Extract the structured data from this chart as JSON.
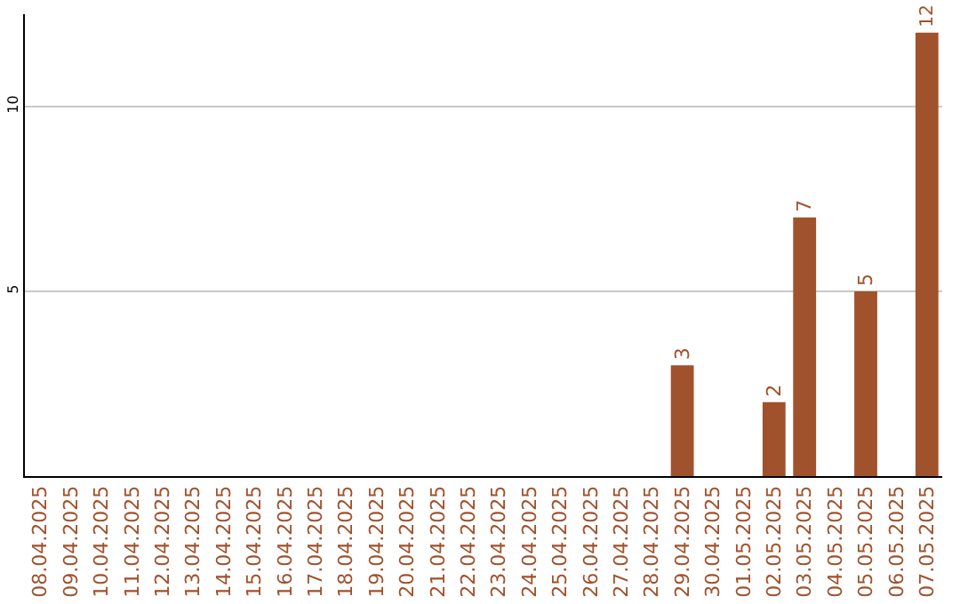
{
  "chart_data": {
    "type": "bar",
    "categories": [
      "08.04.2025",
      "09.04.2025",
      "10.04.2025",
      "11.04.2025",
      "12.04.2025",
      "13.04.2025",
      "14.04.2025",
      "15.04.2025",
      "16.04.2025",
      "17.04.2025",
      "18.04.2025",
      "19.04.2025",
      "20.04.2025",
      "21.04.2025",
      "22.04.2025",
      "23.04.2025",
      "24.04.2025",
      "25.04.2025",
      "26.04.2025",
      "27.04.2025",
      "28.04.2025",
      "29.04.2025",
      "30.04.2025",
      "01.05.2025",
      "02.05.2025",
      "03.05.2025",
      "04.05.2025",
      "05.05.2025",
      "06.05.2025",
      "07.05.2025"
    ],
    "values": [
      0,
      0,
      0,
      0,
      0,
      0,
      0,
      0,
      0,
      0,
      0,
      0,
      0,
      0,
      0,
      0,
      0,
      0,
      0,
      0,
      0,
      3,
      0,
      0,
      2,
      7,
      0,
      5,
      0,
      12
    ],
    "value_labels": [
      null,
      null,
      null,
      null,
      null,
      null,
      null,
      null,
      null,
      null,
      null,
      null,
      null,
      null,
      null,
      null,
      null,
      null,
      null,
      null,
      null,
      "3",
      null,
      null,
      "2",
      "7",
      null,
      "5",
      null,
      "12"
    ],
    "color": "#a0522d",
    "ylim": [
      0,
      12.5
    ],
    "yticks": [
      5,
      10
    ],
    "grid": "y"
  }
}
